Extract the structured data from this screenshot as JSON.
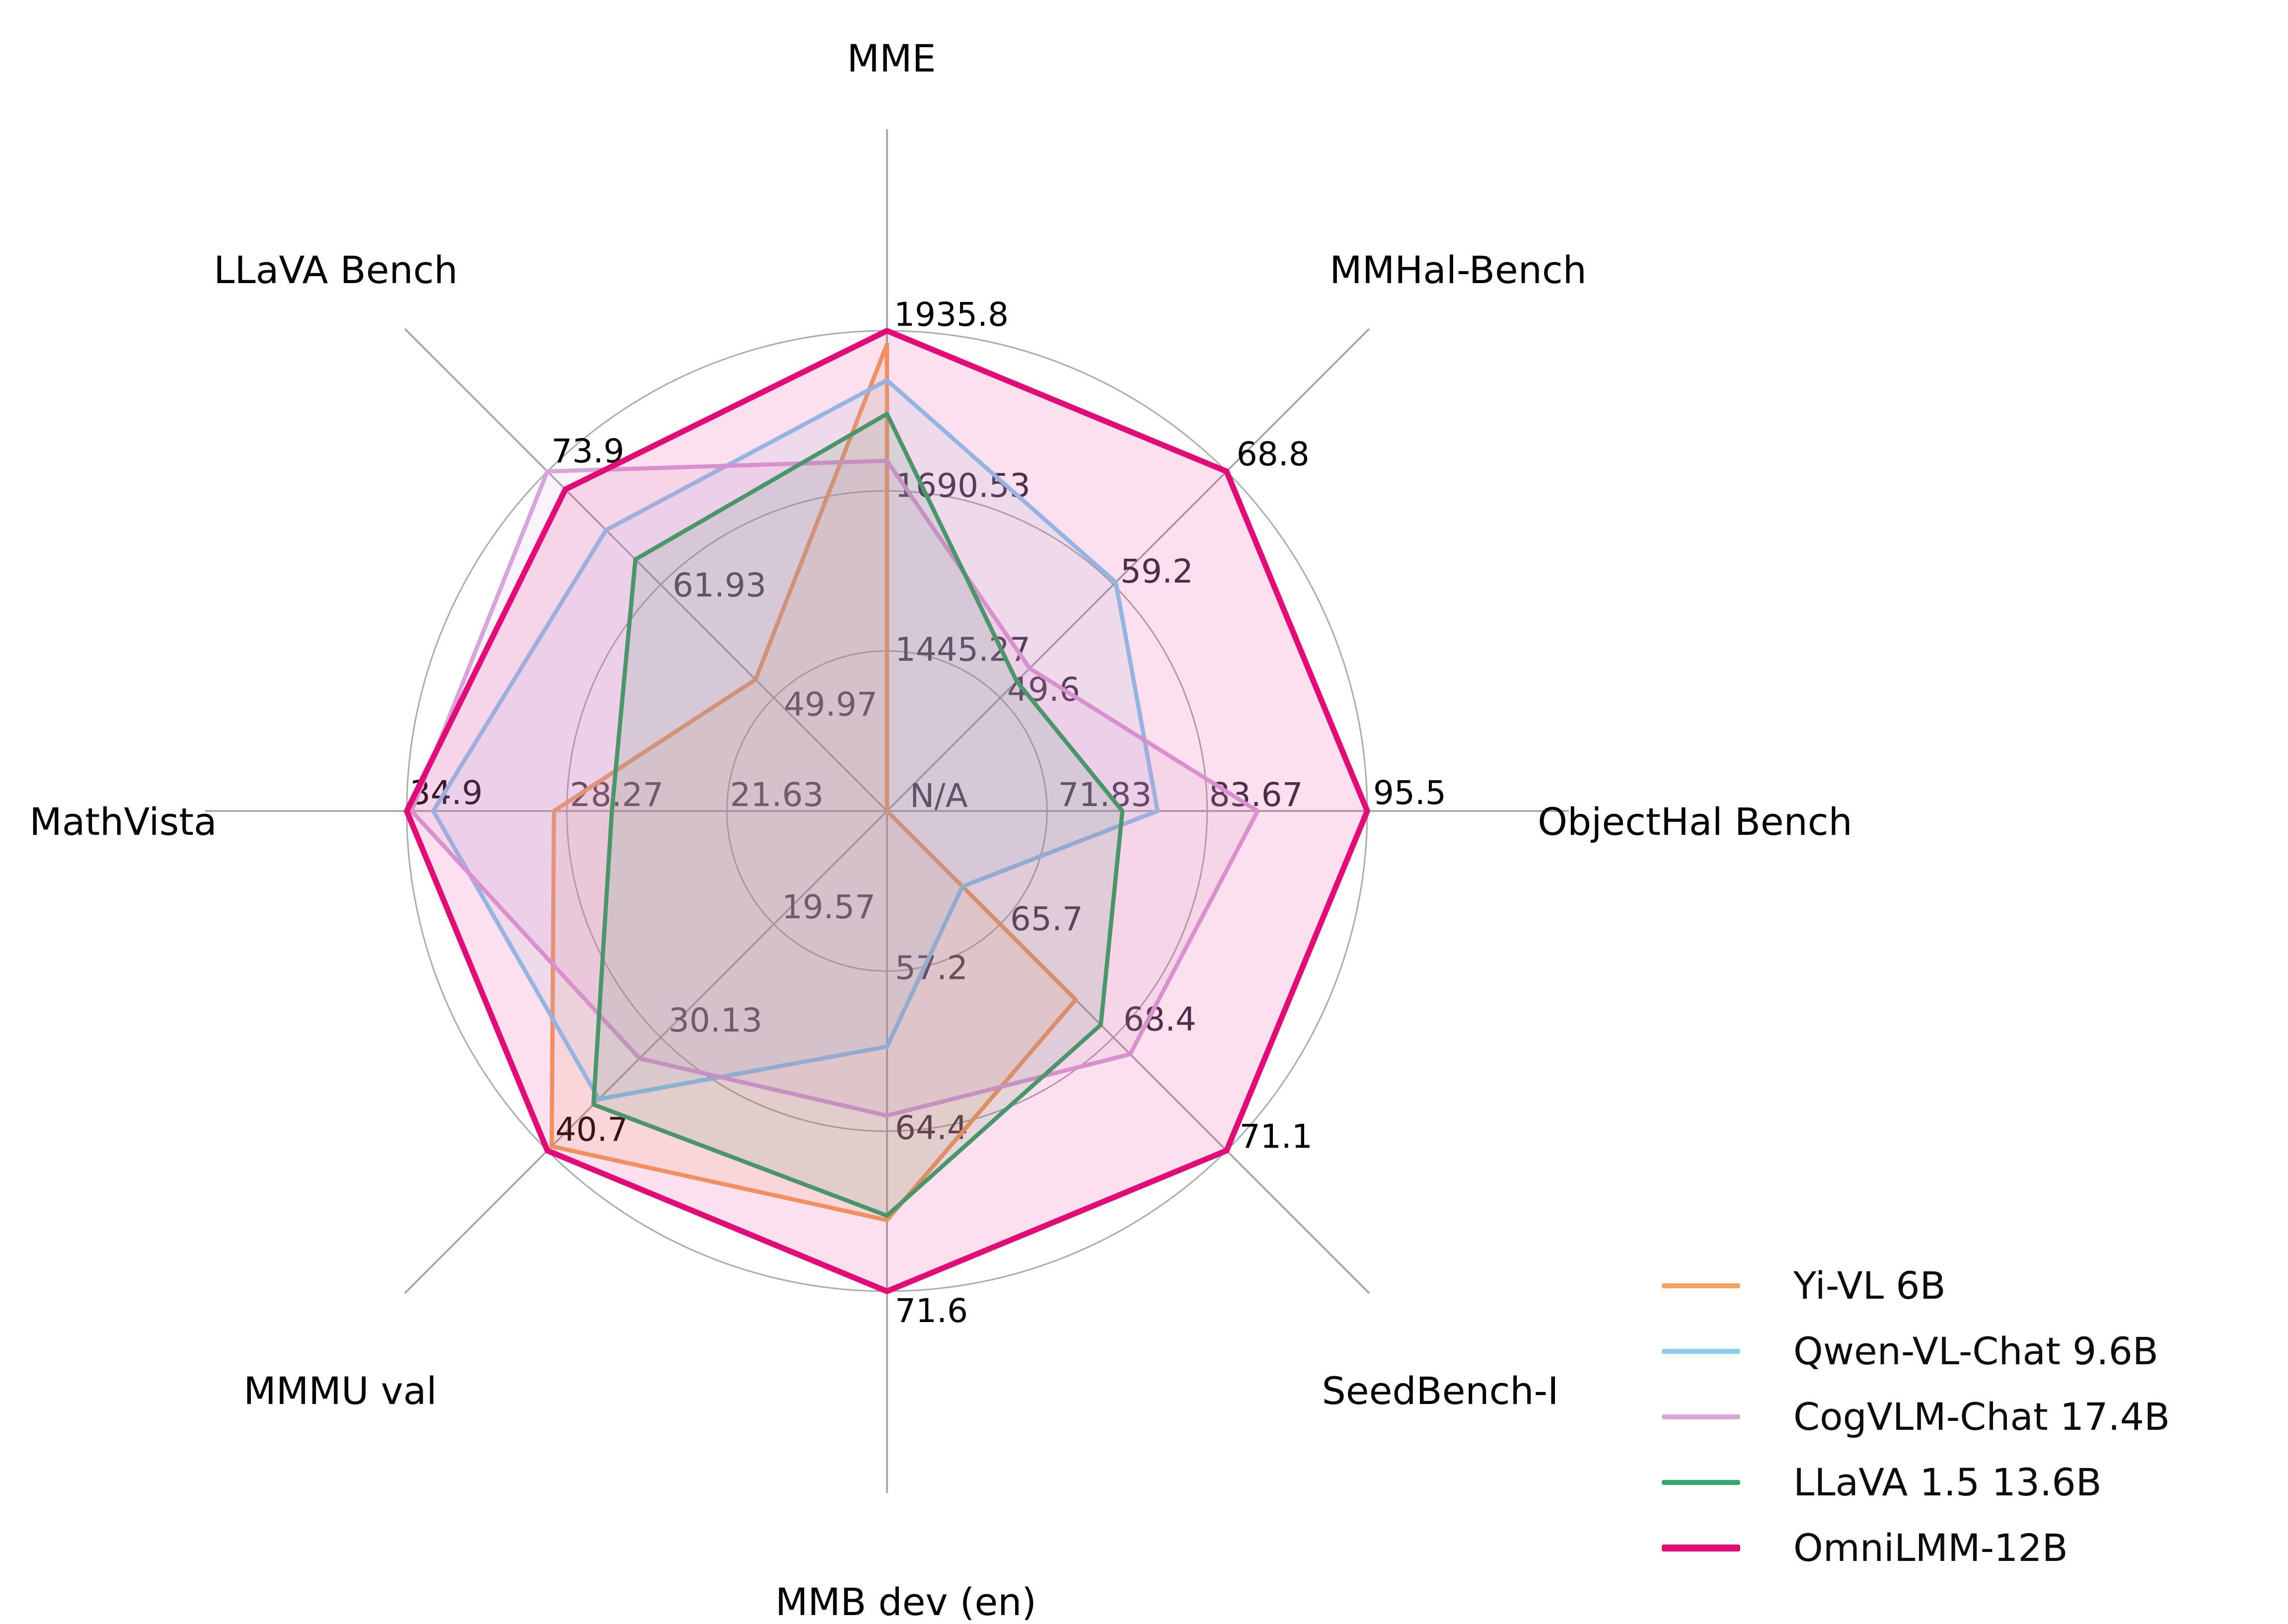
{
  "chart_data": {
    "type": "radar",
    "title": "",
    "center_label": "N/A",
    "grid": "circular, 3 rings at 1/3, 2/3 and full radius, 8 spokes",
    "legend_position": "lower-right",
    "axes": [
      {
        "label": "MME",
        "min": 1200,
        "max": 1935.8,
        "ring_labels": [
          "1445.27",
          "1690.53",
          "1935.8"
        ]
      },
      {
        "label": "MMHal-Bench",
        "min": 40,
        "max": 68.8,
        "ring_labels": [
          "49.6",
          "59.2",
          "68.8"
        ]
      },
      {
        "label": "ObjectHal Bench",
        "min": 60,
        "max": 95.5,
        "ring_labels": [
          "71.83",
          "83.67",
          "95.5"
        ]
      },
      {
        "label": "SeedBench-I",
        "min": 63,
        "max": 71.1,
        "ring_labels": [
          "65.7",
          "68.4",
          "71.1"
        ]
      },
      {
        "label": "MMB dev (en)",
        "min": 50,
        "max": 71.6,
        "ring_labels": [
          "57.2",
          "64.4",
          "71.6"
        ]
      },
      {
        "label": "MMMU val",
        "min": 9,
        "max": 40.7,
        "ring_labels": [
          "19.57",
          "30.13",
          "40.7"
        ]
      },
      {
        "label": "MathVista",
        "min": 15,
        "max": 34.9,
        "ring_labels": [
          "21.63",
          "28.27",
          "34.9"
        ]
      },
      {
        "label": "LLaVA Bench",
        "min": 38,
        "max": 73.9,
        "ring_labels": [
          "49.97",
          "61.93",
          "73.9"
        ]
      }
    ],
    "series": [
      {
        "name": "Yi-VL 6B",
        "color": "#F5A25D",
        "values": [
          1915.1,
          null,
          null,
          67.5,
          68.4,
          40.3,
          28.8,
          51.9
        ]
      },
      {
        "name": "Qwen-VL-Chat 9.6B",
        "color": "#8BCDF2",
        "values": [
          1860.0,
          59.4,
          80.0,
          64.8,
          60.6,
          35.9,
          33.8,
          67.7
        ]
      },
      {
        "name": "CogVLM-Chat 17.4B",
        "color": "#D8A5DB",
        "values": [
          1736.6,
          52.1,
          87.4,
          68.8,
          63.7,
          32.1,
          34.7,
          73.9
        ]
      },
      {
        "name": "LLaVA 1.5 13.6B",
        "color": "#35A96A",
        "values": [
          1808.4,
          51.0,
          77.4,
          68.1,
          68.2,
          36.4,
          26.4,
          64.6
        ]
      },
      {
        "name": "OmniLMM-12B",
        "color": "#E20C76",
        "values": [
          1935.8,
          68.8,
          95.5,
          71.1,
          71.6,
          40.7,
          34.9,
          72.0
        ]
      }
    ],
    "inner_label_color": "#3A3242",
    "outer_label_color": "#000000"
  }
}
